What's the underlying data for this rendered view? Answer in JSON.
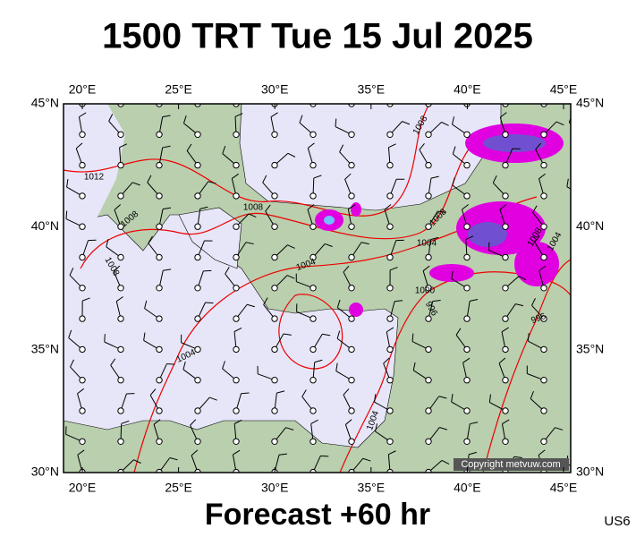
{
  "title": "1500 TRT Tue 15 Jul 2025",
  "footer": "Forecast +60 hr",
  "code": "US6",
  "copyright": "Copyright metvuw.com",
  "map": {
    "lon_labels": [
      "20°E",
      "25°E",
      "30°E",
      "35°E",
      "40°E",
      "45°E"
    ],
    "lat_labels": [
      "45°N",
      "40°N",
      "35°N",
      "30°N"
    ],
    "contour_labels": [
      "1012",
      "1008",
      "1008",
      "1008",
      "1008",
      "1008",
      "1004",
      "1004",
      "1004",
      "1004",
      "1000",
      "996",
      "1008",
      "1004",
      "996"
    ]
  }
}
